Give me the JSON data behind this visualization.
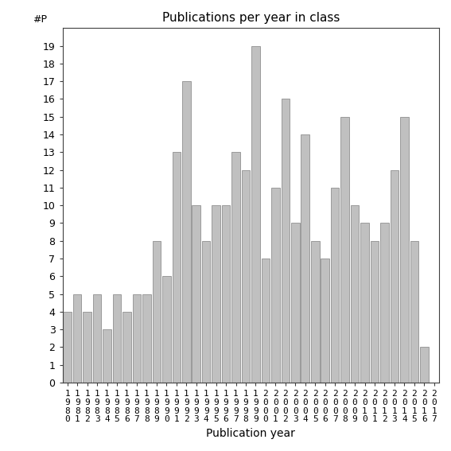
{
  "title": "Publications per year in class",
  "xlabel": "Publication year",
  "ylabel_text": "#P",
  "years": [
    "1980",
    "1981",
    "1982",
    "1983",
    "1984",
    "1985",
    "1986",
    "1987",
    "1988",
    "1989",
    "1990",
    "1991",
    "1992",
    "1993",
    "1994",
    "1995",
    "1996",
    "1997",
    "1998",
    "1999",
    "2000",
    "2001",
    "2002",
    "2003",
    "2004",
    "2005",
    "2006",
    "2007",
    "2008",
    "2009",
    "2010",
    "2011",
    "2012",
    "2013",
    "2014",
    "2015",
    "2016",
    "2017"
  ],
  "values": [
    4,
    5,
    4,
    5,
    3,
    5,
    4,
    5,
    5,
    8,
    6,
    13,
    17,
    10,
    8,
    10,
    10,
    13,
    12,
    19,
    7,
    11,
    16,
    9,
    14,
    8,
    7,
    11,
    15,
    10,
    9,
    8,
    9,
    12,
    15,
    8,
    2,
    0
  ],
  "bar_color": "#c0c0c0",
  "bar_edgecolor": "#808080",
  "ylim": [
    0,
    20
  ],
  "yticks": [
    0,
    1,
    2,
    3,
    4,
    5,
    6,
    7,
    8,
    9,
    10,
    11,
    12,
    13,
    14,
    15,
    16,
    17,
    18,
    19
  ],
  "bg_color": "#ffffff",
  "title_fontsize": 11,
  "label_fontsize": 10,
  "tick_fontsize": 9
}
